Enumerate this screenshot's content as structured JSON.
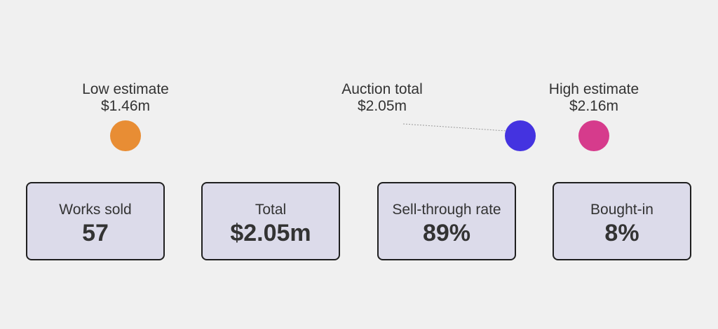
{
  "chart_data": {
    "type": "range",
    "unit": "$m",
    "markers": [
      {
        "key": "low",
        "label": "Low estimate",
        "value": 1.46,
        "value_text": "$1.46m",
        "color": "#e88d34"
      },
      {
        "key": "total",
        "label": "Auction total",
        "value": 2.05,
        "value_text": "$2.05m",
        "color": "#4433e0"
      },
      {
        "key": "high",
        "label": "High estimate",
        "value": 2.16,
        "value_text": "$2.16m",
        "color": "#d63b8c"
      }
    ]
  },
  "stats": [
    {
      "label": "Works sold",
      "value": "57"
    },
    {
      "label": "Total",
      "value": "$2.05m"
    },
    {
      "label": "Sell-through rate",
      "value": "89%"
    },
    {
      "label": "Bought-in",
      "value": "8%"
    }
  ]
}
